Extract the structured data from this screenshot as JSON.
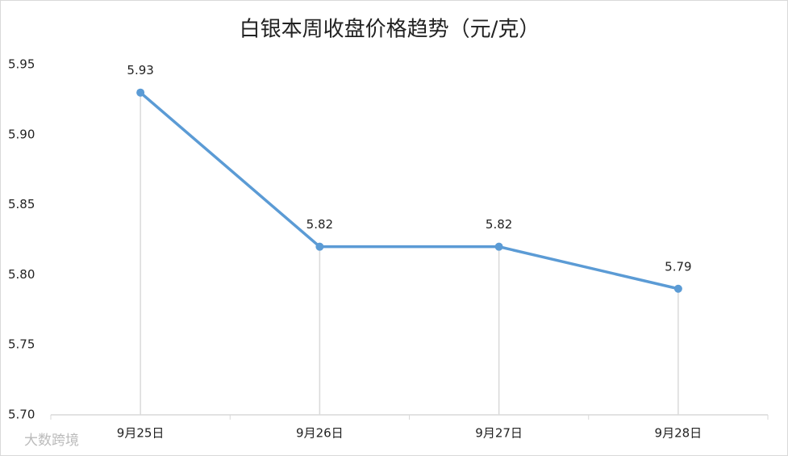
{
  "chart_data": {
    "type": "line",
    "title": "白银本周收盘价格趋势（元/克）",
    "categories": [
      "9月25日",
      "9月26日",
      "9月27日",
      "9月28日"
    ],
    "values": [
      5.93,
      5.82,
      5.82,
      5.79
    ],
    "color": "#5b9bd5",
    "ylim": [
      5.7,
      5.95
    ],
    "yticks": [
      {
        "value": 5.7,
        "label": "5.70"
      },
      5.75,
      {
        "value": 5.8,
        "label": "5.80"
      },
      5.85,
      {
        "value": 5.9,
        "label": "5.90"
      },
      5.95
    ],
    "grid": false,
    "drop_lines": true,
    "watermark": "大数跨境"
  }
}
